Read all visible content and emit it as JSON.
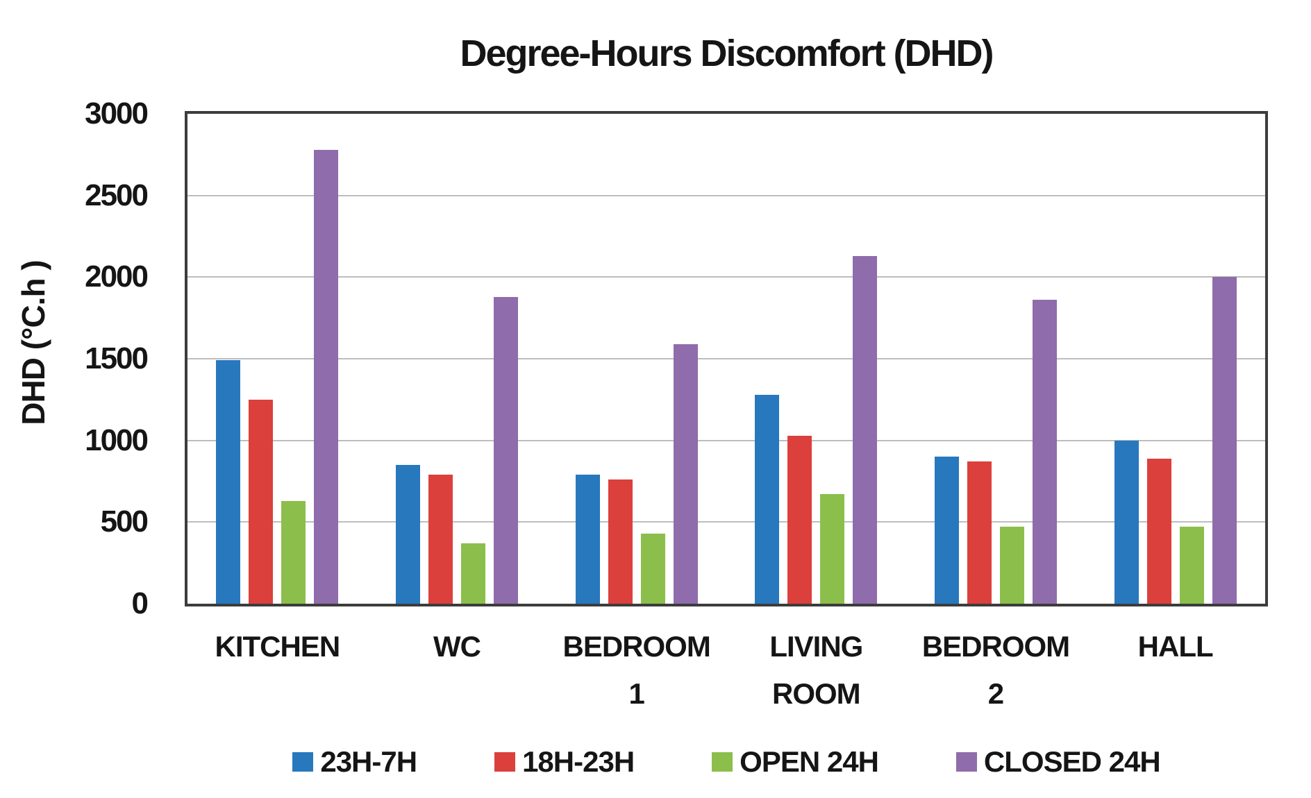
{
  "title": "Degree-Hours Discomfort (DHD)",
  "chart_data": {
    "type": "bar",
    "title": "Degree-Hours Discomfort (DHD)",
    "xlabel": "",
    "ylabel": "DHD (°C.h )",
    "ylim": [
      0,
      3000
    ],
    "ytick_step": 500,
    "grid": true,
    "legend_position": "bottom",
    "categories": [
      "KITCHEN",
      "WC",
      "BEDROOM\n1",
      "LIVING\nROOM",
      "BEDROOM\n2",
      "HALL"
    ],
    "series": [
      {
        "name": "23H-7H",
        "color": "#2878BE",
        "values": [
          1490,
          850,
          790,
          1280,
          900,
          1000
        ]
      },
      {
        "name": "18H-23H",
        "color": "#DB403C",
        "values": [
          1250,
          790,
          760,
          1030,
          870,
          890
        ]
      },
      {
        "name": "OPEN 24H",
        "color": "#8CBE4C",
        "values": [
          630,
          370,
          430,
          670,
          470,
          470
        ]
      },
      {
        "name": "CLOSED 24H",
        "color": "#8F6CAB",
        "values": [
          2780,
          1880,
          1590,
          2130,
          1860,
          2000
        ]
      }
    ]
  },
  "colors": {
    "plot_border": "#3c3c3c",
    "gridline": "#bdbdbd",
    "text": "#151515",
    "background": "#ffffff"
  }
}
